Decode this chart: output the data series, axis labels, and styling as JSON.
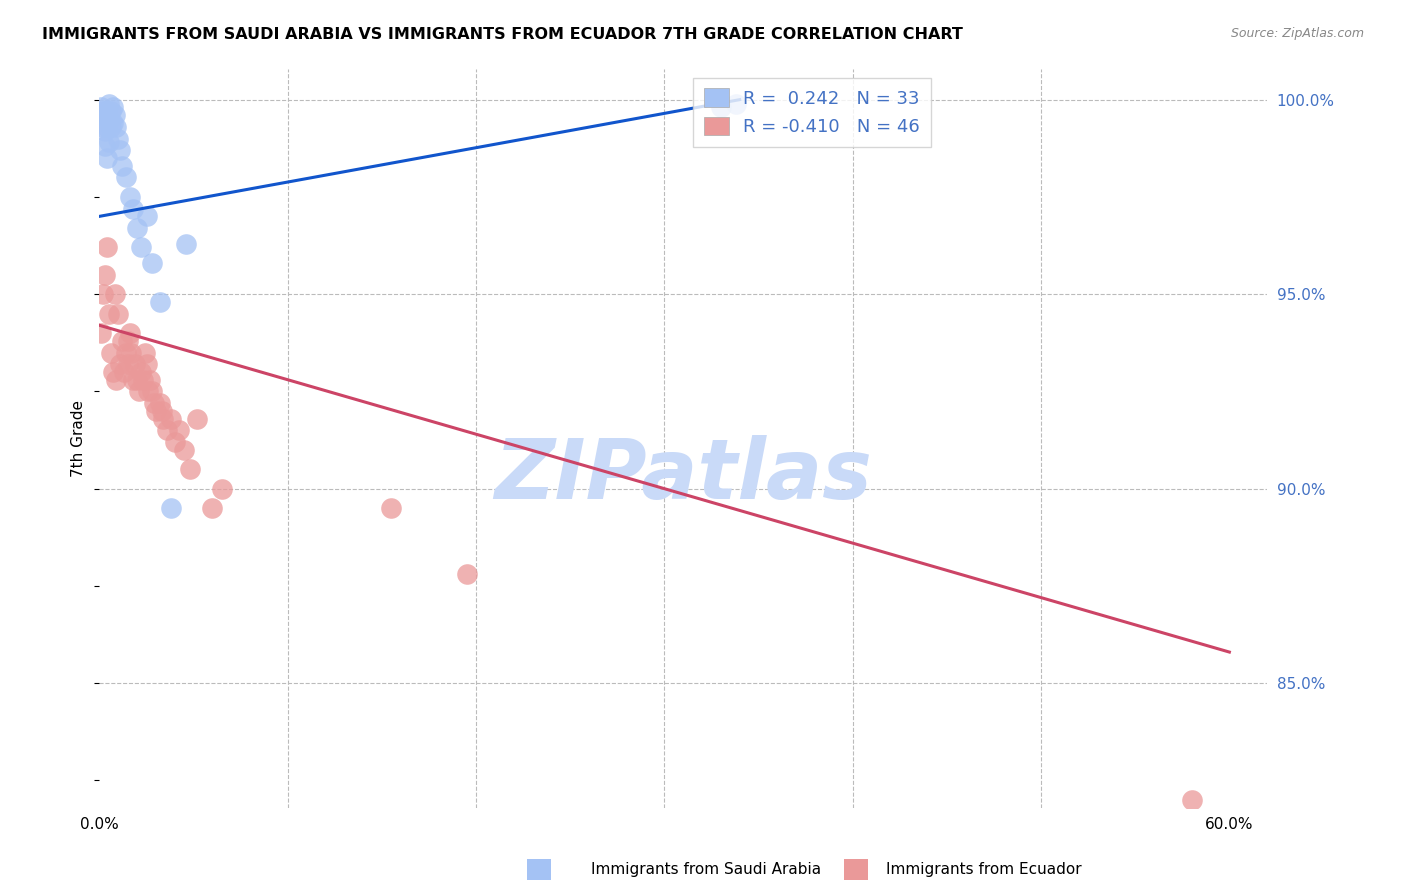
{
  "title": "IMMIGRANTS FROM SAUDI ARABIA VS IMMIGRANTS FROM ECUADOR 7TH GRADE CORRELATION CHART",
  "source": "Source: ZipAtlas.com",
  "ylabel": "7th Grade",
  "saudi_R": 0.242,
  "saudi_N": 33,
  "ecuador_R": -0.41,
  "ecuador_N": 46,
  "saudi_color": "#a4c2f4",
  "ecuador_color": "#ea9999",
  "saudi_line_color": "#1155cc",
  "ecuador_line_color": "#cc4466",
  "watermark": "ZIPatlas",
  "watermark_color": "#c9daf8",
  "background_color": "#ffffff",
  "grid_color": "#bbbbbb",
  "xlim": [
    0.0,
    0.62
  ],
  "ylim": [
    0.818,
    1.008
  ],
  "y_ticks_right": [
    0.85,
    0.9,
    0.95,
    1.0
  ],
  "x_ticks": [
    0.0,
    0.1,
    0.2,
    0.3,
    0.4,
    0.5,
    0.6
  ],
  "x_tick_labels": [
    "0.0%",
    "",
    "",
    "",
    "",
    "",
    "60.0%"
  ],
  "saudi_line_x0": 0.0,
  "saudi_line_y0": 0.97,
  "saudi_line_x1": 0.34,
  "saudi_line_y1": 1.0,
  "ecuador_line_x0": 0.0,
  "ecuador_line_y0": 0.942,
  "ecuador_line_x1": 0.6,
  "ecuador_line_y1": 0.858,
  "saudi_x": [
    0.001,
    0.002,
    0.002,
    0.003,
    0.003,
    0.003,
    0.004,
    0.004,
    0.004,
    0.005,
    0.005,
    0.005,
    0.006,
    0.006,
    0.007,
    0.007,
    0.008,
    0.009,
    0.01,
    0.011,
    0.012,
    0.014,
    0.016,
    0.018,
    0.02,
    0.022,
    0.025,
    0.028,
    0.032,
    0.038,
    0.046,
    0.33,
    0.338
  ],
  "saudi_y": [
    0.998,
    0.997,
    0.993,
    0.996,
    0.992,
    0.988,
    0.997,
    0.993,
    0.985,
    0.999,
    0.995,
    0.989,
    0.997,
    0.993,
    0.998,
    0.994,
    0.996,
    0.993,
    0.99,
    0.987,
    0.983,
    0.98,
    0.975,
    0.972,
    0.967,
    0.962,
    0.97,
    0.958,
    0.948,
    0.895,
    0.963,
    0.998,
    0.999
  ],
  "ecuador_x": [
    0.001,
    0.002,
    0.003,
    0.004,
    0.005,
    0.006,
    0.007,
    0.008,
    0.009,
    0.01,
    0.011,
    0.012,
    0.013,
    0.014,
    0.015,
    0.015,
    0.016,
    0.017,
    0.018,
    0.019,
    0.02,
    0.021,
    0.022,
    0.023,
    0.024,
    0.025,
    0.026,
    0.027,
    0.028,
    0.029,
    0.03,
    0.032,
    0.033,
    0.034,
    0.036,
    0.038,
    0.04,
    0.042,
    0.045,
    0.048,
    0.052,
    0.06,
    0.065,
    0.155,
    0.195,
    0.58
  ],
  "ecuador_y": [
    0.94,
    0.95,
    0.955,
    0.962,
    0.945,
    0.935,
    0.93,
    0.95,
    0.928,
    0.945,
    0.932,
    0.938,
    0.93,
    0.935,
    0.938,
    0.932,
    0.94,
    0.935,
    0.928,
    0.932,
    0.928,
    0.925,
    0.93,
    0.928,
    0.935,
    0.932,
    0.925,
    0.928,
    0.925,
    0.922,
    0.92,
    0.922,
    0.92,
    0.918,
    0.915,
    0.918,
    0.912,
    0.915,
    0.91,
    0.905,
    0.918,
    0.895,
    0.9,
    0.895,
    0.878,
    0.82
  ]
}
